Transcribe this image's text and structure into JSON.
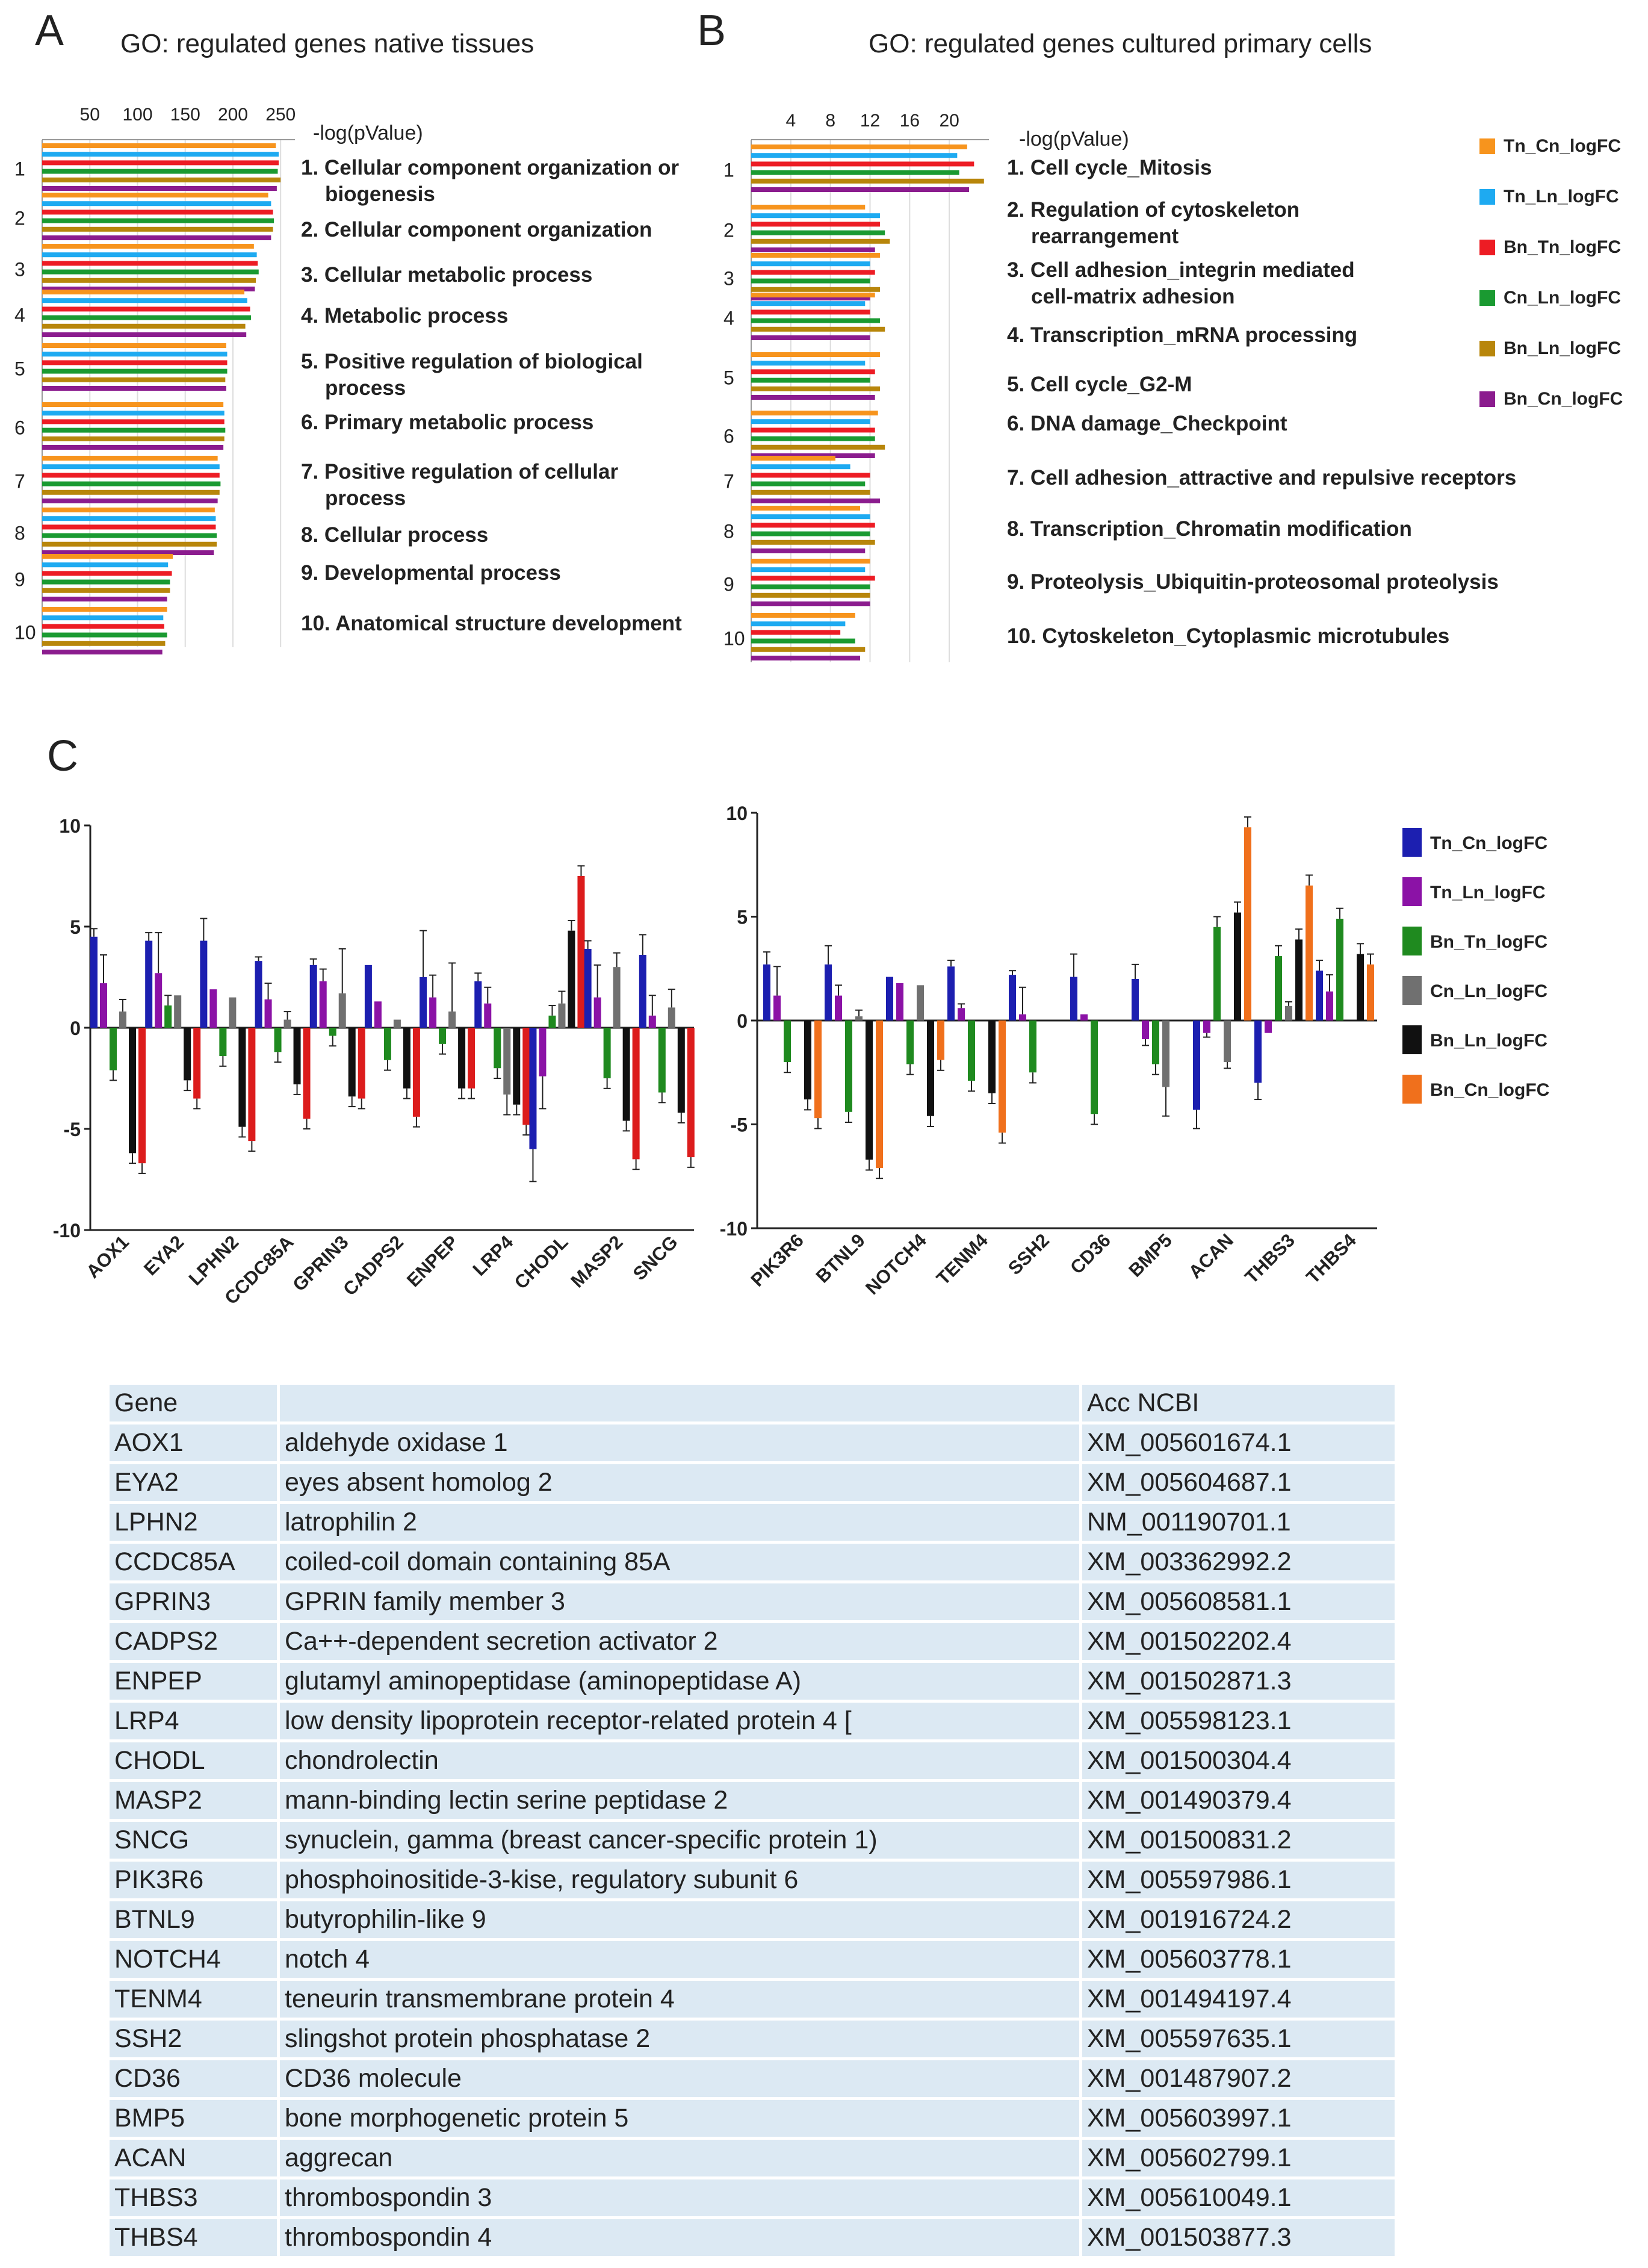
{
  "panels": {
    "a": {
      "letter": "A",
      "title": "GO: regulated genes native tissues"
    },
    "b": {
      "letter": "B",
      "title": "GO: regulated genes cultured primary cells"
    },
    "c": {
      "letter": "C"
    }
  },
  "chart_data": [
    {
      "type": "bar",
      "orientation": "horizontal",
      "panel": "A",
      "title": "GO: regulated genes native tissues",
      "xlabel": "-log(pValue)",
      "xticks": [
        50,
        100,
        150,
        200,
        250
      ],
      "xlim": [
        0,
        265
      ],
      "categories": [
        "1",
        "2",
        "3",
        "4",
        "5",
        "6",
        "7",
        "8",
        "9",
        "10"
      ],
      "category_labels": [
        "1. Cellular component organization or biogenesis",
        "2. Cellular component organization",
        "3. Cellular metabolic process",
        "4. Metabolic process",
        "5. Positive regulation of biological process",
        "6. Primary metabolic process",
        "7. Positive regulation of cellular process",
        "8. Cellular  process",
        "9. Developmental  process",
        "10. Anatomical structure development"
      ],
      "series": [
        {
          "name": "Tn_Cn_logFC",
          "color": "#f7941d",
          "values": [
            245,
            237,
            222,
            212,
            193,
            190,
            184,
            181,
            137,
            131
          ]
        },
        {
          "name": "Tn_Ln_logFC",
          "color": "#1eaaf1",
          "values": [
            248,
            240,
            225,
            215,
            194,
            191,
            186,
            182,
            132,
            127
          ]
        },
        {
          "name": "Bn_Tn_logFC",
          "color": "#ed1c24",
          "values": [
            248,
            242,
            226,
            218,
            194,
            191,
            186,
            182,
            136,
            128
          ]
        },
        {
          "name": "Cn_Ln_logFC",
          "color": "#1a9a31",
          "values": [
            247,
            243,
            227,
            219,
            194,
            192,
            187,
            183,
            134,
            131
          ]
        },
        {
          "name": "Bn_Ln_logFC",
          "color": "#b8860b",
          "values": [
            250,
            242,
            224,
            213,
            192,
            191,
            186,
            183,
            134,
            129
          ]
        },
        {
          "name": "Bn_Cn_logFC",
          "color": "#8b1c8e",
          "values": [
            246,
            240,
            223,
            214,
            193,
            190,
            184,
            180,
            131,
            126
          ]
        }
      ]
    },
    {
      "type": "bar",
      "orientation": "horizontal",
      "panel": "B",
      "title": "GO: regulated genes cultured primary cells",
      "xlabel": "-log(pValue)",
      "xticks": [
        4,
        8,
        12,
        16,
        20
      ],
      "xlim": [
        0,
        24
      ],
      "categories": [
        "1",
        "2",
        "3",
        "4",
        "5",
        "6",
        "7",
        "8",
        "9",
        "10"
      ],
      "category_labels": [
        "1. Cell cycle_Mitosis",
        "2. Regulation of cytoskeleton rearrangement",
        "3. Cell adhesion_integrin mediated cell-matrix adhesion",
        "4. Transcription_mRNA processing",
        "5. Cell cycle_G2-M",
        "6. DNA damage_Checkpoint",
        "7. Cell adhesion_attractive and repulsive receptors",
        "8. Transcription_Chromatin modification",
        "9. Proteolysis_Ubiquitin-proteosomal proteolysis",
        "10. Cytoskeleton_Cytoplasmic microtubules"
      ],
      "series": [
        {
          "name": "Tn_Cn_logFC",
          "color": "#f7941d",
          "values": [
            21.8,
            11.5,
            13.0,
            12.5,
            13.0,
            12.8,
            8.5,
            11.0,
            12.0,
            10.5
          ]
        },
        {
          "name": "Tn_Ln_logFC",
          "color": "#1eaaf1",
          "values": [
            20.8,
            13.0,
            12.0,
            11.5,
            11.5,
            12.0,
            10.0,
            12.0,
            11.5,
            9.5
          ]
        },
        {
          "name": "Bn_Tn_logFC",
          "color": "#ed1c24",
          "values": [
            22.5,
            13.0,
            12.5,
            12.0,
            12.5,
            12.5,
            12.0,
            12.5,
            12.5,
            9.0
          ]
        },
        {
          "name": "Cn_Ln_logFC",
          "color": "#1a9a31",
          "values": [
            21.0,
            13.5,
            12.0,
            13.0,
            12.0,
            12.5,
            11.5,
            12.0,
            12.0,
            10.5
          ]
        },
        {
          "name": "Bn_Ln_logFC",
          "color": "#b8860b",
          "values": [
            23.5,
            14.0,
            13.0,
            13.5,
            13.0,
            13.5,
            12.0,
            12.5,
            12.0,
            11.5
          ]
        },
        {
          "name": "Bn_Cn_logFC",
          "color": "#8b1c8e",
          "values": [
            22.0,
            12.5,
            12.0,
            12.0,
            12.5,
            12.5,
            13.0,
            11.5,
            12.0,
            11.0
          ]
        }
      ],
      "legend": "right"
    },
    {
      "type": "bar",
      "panel": "C-left",
      "ylim": [
        -10,
        10
      ],
      "yticks": [
        -10,
        -5,
        0,
        5,
        10
      ],
      "categories": [
        "AOX1",
        "EYA2",
        "LPHN2",
        "CCDC85A",
        "GPRIN3",
        "CADPS2",
        "ENPEP",
        "LRP4",
        "CHODL",
        "MASP2",
        "SNCG"
      ],
      "series": [
        {
          "name": "Tn_Cn_logFC",
          "color": "#1c1fb0",
          "values": [
            4.5,
            4.3,
            4.3,
            3.3,
            3.1,
            3.1,
            2.5,
            2.3,
            -6.0,
            3.9,
            3.6
          ],
          "errors": [
            0.4,
            0.4,
            1.1,
            0.2,
            0.3,
            0,
            2.3,
            0.4,
            1.6,
            0.4,
            1.0
          ]
        },
        {
          "name": "Tn_Ln_logFC",
          "color": "#8b12a6",
          "values": [
            2.2,
            2.7,
            1.9,
            1.4,
            2.3,
            1.3,
            1.5,
            1.2,
            -2.4,
            1.5,
            0.6
          ],
          "errors": [
            1.4,
            2.0,
            0,
            0.8,
            0.6,
            0,
            1.1,
            0.8,
            1.6,
            1.6,
            1.0
          ]
        },
        {
          "name": "Bn_Tn_logFC",
          "color": "#1f8a1f",
          "values": [
            -2.1,
            1.1,
            -1.4,
            -1.2,
            -0.4,
            -1.6,
            -0.8,
            -2.0,
            0.6,
            -2.5,
            -3.2
          ]
        },
        {
          "name": "Cn_Ln_logFC",
          "color": "#707070",
          "values": [
            0.8,
            1.6,
            1.5,
            0.4,
            1.7,
            0.4,
            0.8,
            -3.3,
            1.2,
            3.0,
            1.0
          ],
          "errors": [
            0.6,
            0,
            0,
            0.4,
            2.2,
            0,
            2.4,
            1.0,
            0.6,
            0.7,
            0.9
          ]
        },
        {
          "name": "Bn_Ln_logFC",
          "color": "#111111",
          "values": [
            -6.2,
            -2.6,
            -4.9,
            -2.8,
            -3.4,
            -3.0,
            -3.0,
            -3.8,
            4.8,
            -4.6,
            -4.2
          ]
        },
        {
          "name": "Bn_Cn_logFC",
          "color": "#dc1c1c",
          "values": [
            -6.7,
            -3.5,
            -5.6,
            -4.5,
            -3.5,
            -4.4,
            -3.0,
            -4.8,
            7.5,
            -6.5,
            -6.4
          ]
        }
      ]
    },
    {
      "type": "bar",
      "panel": "C-right",
      "ylim": [
        -10,
        10
      ],
      "yticks": [
        -10,
        -5,
        0,
        5,
        10
      ],
      "categories": [
        "PIK3R6",
        "BTNL9",
        "NOTCH4",
        "TENM4",
        "SSH2",
        "CD36",
        "BMP5",
        "ACAN",
        "THBS3",
        "THBS4"
      ],
      "series": [
        {
          "name": "Tn_Cn_logFC",
          "color": "#1c1fb0",
          "values": [
            2.7,
            2.7,
            2.1,
            2.6,
            2.2,
            2.1,
            2.0,
            -4.3,
            -3.0,
            2.4
          ],
          "errors": [
            0.6,
            0.9,
            0,
            0.3,
            0.2,
            1.1,
            0.7,
            0.9,
            0.8,
            0.5
          ]
        },
        {
          "name": "Tn_Ln_logFC",
          "color": "#8b12a6",
          "values": [
            1.2,
            1.2,
            1.8,
            0.6,
            0.3,
            0.3,
            -0.9,
            -0.6,
            -0.6,
            1.4
          ],
          "errors": [
            1.4,
            0.5,
            0,
            0.2,
            1.3,
            0,
            0.3,
            0.2,
            0,
            0.8
          ]
        },
        {
          "name": "Bn_Tn_logFC",
          "color": "#1f8a1f",
          "values": [
            -2.0,
            -4.4,
            -2.1,
            -2.9,
            -2.5,
            -4.5,
            -2.1,
            4.5,
            3.1,
            4.9
          ]
        },
        {
          "name": "Cn_Ln_logFC",
          "color": "#707070",
          "values": [
            null,
            0.2,
            1.7,
            null,
            null,
            null,
            -3.2,
            -2.0,
            0.7,
            null
          ],
          "errors": [
            0,
            0.3,
            0,
            0,
            0,
            0,
            1.4,
            0.3,
            0.2,
            0
          ]
        },
        {
          "name": "Bn_Ln_logFC",
          "color": "#111111",
          "values": [
            -3.8,
            -6.7,
            -4.6,
            -3.5,
            null,
            null,
            null,
            5.2,
            3.9,
            3.2
          ]
        },
        {
          "name": "Bn_Cn_logFC",
          "color": "#f0701c",
          "values": [
            -4.7,
            -7.1,
            -1.9,
            -5.4,
            null,
            null,
            null,
            9.3,
            6.5,
            2.7
          ]
        }
      ],
      "legend": "right"
    }
  ],
  "table": {
    "headers": [
      "Gene",
      "",
      "Acc NCBI"
    ],
    "rows": [
      [
        "AOX1",
        "aldehyde oxidase 1",
        "XM_005601674.1"
      ],
      [
        "EYA2",
        "eyes absent homolog 2",
        "XM_005604687.1"
      ],
      [
        "LPHN2",
        "latrophilin 2",
        "NM_001190701.1"
      ],
      [
        "CCDC85A",
        "coiled-coil domain containing 85A",
        "XM_003362992.2"
      ],
      [
        "GPRIN3",
        "GPRIN family member 3",
        "XM_005608581.1"
      ],
      [
        "CADPS2",
        "Ca++-dependent secretion activator 2",
        "XM_001502202.4"
      ],
      [
        "ENPEP",
        "glutamyl aminopeptidase (aminopeptidase A)",
        "XM_001502871.3"
      ],
      [
        "LRP4",
        "low density lipoprotein receptor-related protein 4 [",
        "XM_005598123.1"
      ],
      [
        "CHODL",
        "chondrolectin",
        "XM_001500304.4"
      ],
      [
        "MASP2",
        "mann-binding lectin serine peptidase 2",
        "XM_001490379.4"
      ],
      [
        "SNCG",
        "synuclein, gamma (breast cancer-specific protein 1)",
        "XM_001500831.2"
      ],
      [
        "PIK3R6",
        "phosphoinositide-3-kise, regulatory subunit 6",
        "XM_005597986.1"
      ],
      [
        "BTNL9",
        "butyrophilin-like 9",
        "XM_001916724.2"
      ],
      [
        "NOTCH4",
        "notch 4",
        "XM_005603778.1"
      ],
      [
        "TENM4",
        "teneurin transmembrane protein 4",
        "XM_001494197.4"
      ],
      [
        "SSH2",
        "slingshot protein phosphatase 2",
        "XM_005597635.1"
      ],
      [
        "CD36",
        "CD36 molecule",
        "XM_001487907.2"
      ],
      [
        "BMP5",
        "bone morphogenetic protein 5",
        "XM_005603997.1"
      ],
      [
        "ACAN",
        "aggrecan",
        "XM_005602799.1"
      ],
      [
        "THBS3",
        "thrombospondin 3",
        "XM_005610049.1"
      ],
      [
        "THBS4",
        "thrombospondin 4",
        "XM_001503877.3"
      ]
    ]
  }
}
